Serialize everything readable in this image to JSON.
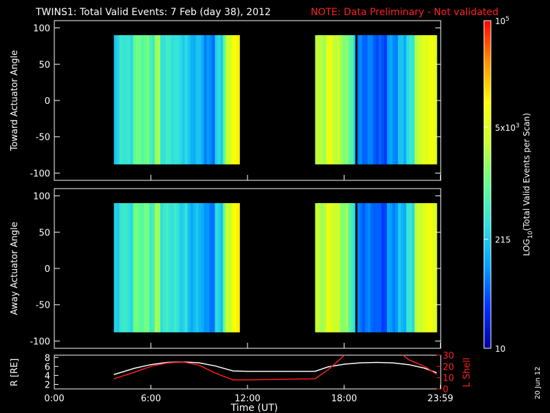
{
  "header": {
    "title": "TWINS1: Total Valid Events:  7 Feb (day  38), 2012",
    "note": "NOTE: Data Preliminary - Not validated",
    "note_color": "#ff2020"
  },
  "footer": {
    "date_stamp": "20 Jun 12"
  },
  "chart_data": [
    {
      "type": "heatmap",
      "name": "toward",
      "ylabel": "Toward Actuator Angle",
      "ylim": [
        -110,
        110
      ],
      "yticks": [
        "100",
        "50",
        "0",
        "-50",
        "-100"
      ],
      "yticks_values": [
        100,
        50,
        0,
        -50,
        -100
      ],
      "xlim_hours": [
        0,
        24
      ],
      "y_range": [
        -88,
        90
      ],
      "blocks": [
        {
          "start": 3.7,
          "end": 11.5,
          "profile": "A"
        },
        {
          "start": 16.2,
          "end": 23.75,
          "profile": "B"
        }
      ]
    },
    {
      "type": "heatmap",
      "name": "away",
      "ylabel": "Away Actuator Angle",
      "ylim": [
        -110,
        110
      ],
      "yticks": [
        "100",
        "50",
        "0",
        "-50",
        "-100"
      ],
      "yticks_values": [
        100,
        50,
        0,
        -50,
        -100
      ],
      "xlim_hours": [
        0,
        24
      ],
      "y_range": [
        -88,
        90
      ],
      "blocks": [
        {
          "start": 3.7,
          "end": 11.5,
          "profile": "A"
        },
        {
          "start": 16.2,
          "end": 23.75,
          "profile": "B"
        }
      ]
    },
    {
      "type": "line",
      "name": "orbit",
      "ylabel": "R [RE]",
      "ylabel_right": "L Shell",
      "ylim": [
        1,
        8.5
      ],
      "yticks": [
        "8",
        "6",
        "4",
        "2"
      ],
      "yticks_values": [
        8,
        6,
        4,
        2
      ],
      "ylim_right": [
        0,
        30
      ],
      "yticks_right": [
        "30",
        "20",
        "10",
        "0"
      ],
      "yticks_right_values": [
        30,
        20,
        10,
        0
      ],
      "xlabel": "Time (UT)",
      "xticks": [
        "0:00",
        "6:00",
        "12:00",
        "18:00",
        "23:59"
      ],
      "xticks_values": [
        0,
        6,
        12,
        18,
        23.98
      ],
      "series": [
        {
          "color": "#ffffff",
          "axis": "left",
          "x": [
            3.7,
            5,
            6,
            7,
            8,
            9,
            10,
            11.1,
            12,
            14,
            16.2,
            17,
            18,
            19,
            20,
            21,
            22,
            23,
            23.75
          ],
          "y": [
            4.2,
            5.6,
            6.4,
            6.9,
            7.0,
            6.8,
            6.1,
            5.0,
            4.9,
            4.9,
            4.9,
            5.9,
            6.5,
            6.8,
            6.9,
            6.8,
            6.4,
            5.6,
            4.6
          ]
        },
        {
          "color": "#ff2020",
          "axis": "right",
          "x": [
            3.7,
            5,
            6,
            7,
            8,
            9,
            10,
            11.1,
            12,
            14,
            16.2,
            17,
            17.8,
            18.3,
            20,
            21,
            21.5,
            22,
            23,
            23.75
          ],
          "y": [
            9,
            15,
            20,
            23,
            24,
            21,
            14,
            8,
            8,
            8.5,
            9,
            17,
            27,
            34,
            34,
            34,
            32,
            26,
            20,
            13
          ]
        }
      ]
    },
    {
      "type": "heatmap-colorbar",
      "label": "LOG10(Total Valid Events per Scan)",
      "label_main": "LOG",
      "label_sub": "10",
      "label_rest": "(Total Valid Events per Scan)",
      "ticks": [
        {
          "value": 100000,
          "base": "10",
          "exp": "5"
        },
        {
          "value": 5000,
          "base": "5x10",
          "exp": "3"
        },
        {
          "value": 215,
          "base": "215",
          "exp": ""
        },
        {
          "value": 10,
          "base": "10",
          "exp": ""
        }
      ],
      "range": [
        10,
        100000
      ],
      "colors": [
        "#0000a0",
        "#0030ff",
        "#00a0ff",
        "#30e0e0",
        "#60ff90",
        "#c8ff30",
        "#ffff00",
        "#ff9000",
        "#ff0000"
      ]
    }
  ]
}
